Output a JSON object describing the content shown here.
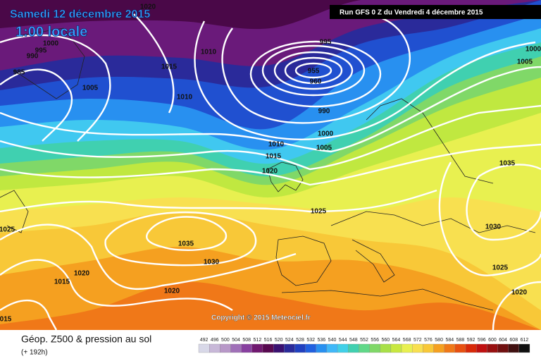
{
  "header": {
    "date": "Samedi 12 décembre 2015",
    "time": "1:00 locale",
    "run": "Run GFS 0 Z du Vendredi 4 décembre 2015"
  },
  "copyright": "Copyright © 2015 Meteociel.fr",
  "isobar_labels": [
    "1020",
    "1000",
    "995",
    "990",
    "985",
    "1005",
    "1015",
    "1010",
    "1010",
    "995",
    "955",
    "960",
    "990",
    "1000",
    "1005",
    "1010",
    "1015",
    "1020",
    "1025",
    "1035",
    "1030",
    "1020",
    "1015",
    "1020",
    "1025",
    "1035",
    "1030",
    "1025",
    "1020",
    "1000",
    "1005",
    "015"
  ],
  "legend": {
    "title": "Géop. Z500 & pression au sol",
    "subtitle": "(+ 192h)",
    "scale": [
      492,
      496,
      500,
      504,
      508,
      512,
      516,
      520,
      524,
      528,
      532,
      536,
      540,
      544,
      548,
      552,
      556,
      560,
      564,
      568,
      572,
      576,
      580,
      584,
      588,
      592,
      596,
      600,
      604,
      608,
      612
    ],
    "colors": [
      "#d8d8e8",
      "#c8b8d8",
      "#b898c8",
      "#a070b8",
      "#8840a0",
      "#701870",
      "#580850",
      "#3a1070",
      "#2a2a9a",
      "#2040c0",
      "#2060e0",
      "#2890f0",
      "#40b8f8",
      "#40d0e8",
      "#40d0b0",
      "#60d888",
      "#80d868",
      "#a8e048",
      "#c8e840",
      "#e8f050",
      "#f8e050",
      "#f8c838",
      "#f5a020",
      "#f07818",
      "#e85010",
      "#d82808",
      "#c01010",
      "#981010",
      "#701010",
      "#401010",
      "#101010"
    ]
  }
}
